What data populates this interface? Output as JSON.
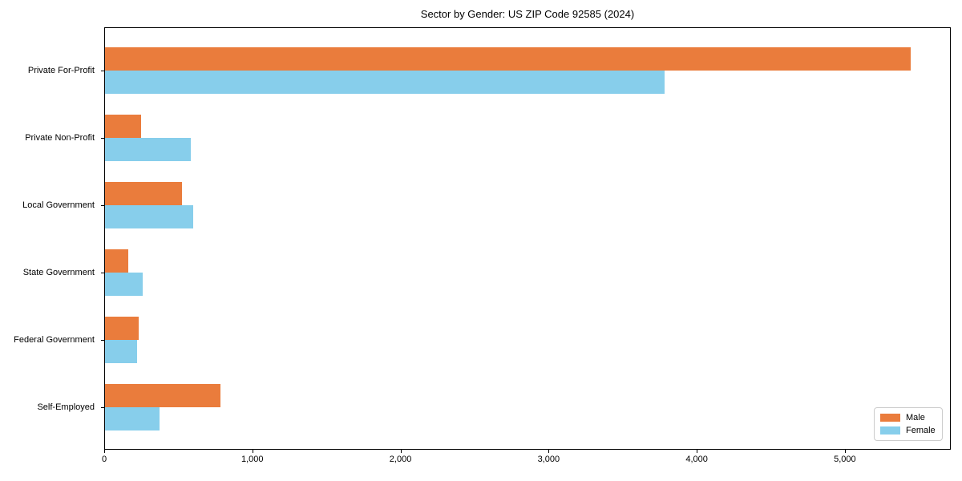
{
  "title": "Sector by Gender: US ZIP Code 92585 (2024)",
  "chart_data": {
    "type": "bar",
    "orientation": "horizontal",
    "title": "Sector by Gender: US ZIP Code 92585 (2024)",
    "categories": [
      "Private For-Profit",
      "Private Non-Profit",
      "Local Government",
      "State Government",
      "Federal Government",
      "Self-Employed"
    ],
    "series": [
      {
        "name": "Male",
        "color": "#EA7C3C",
        "values": [
          5440,
          245,
          520,
          155,
          230,
          780
        ]
      },
      {
        "name": "Female",
        "color": "#87CEEB",
        "values": [
          3780,
          580,
          595,
          255,
          215,
          370
        ]
      }
    ],
    "xlabel": "",
    "ylabel": "",
    "xlim": [
      0,
      5715
    ],
    "xticks": [
      0,
      1000,
      2000,
      3000,
      4000,
      5000
    ],
    "xtick_labels": [
      "0",
      "1,000",
      "2,000",
      "3,000",
      "4,000",
      "5,000"
    ],
    "grid": false,
    "legend": {
      "position": "lower right",
      "entries": [
        "Male",
        "Female"
      ]
    }
  }
}
